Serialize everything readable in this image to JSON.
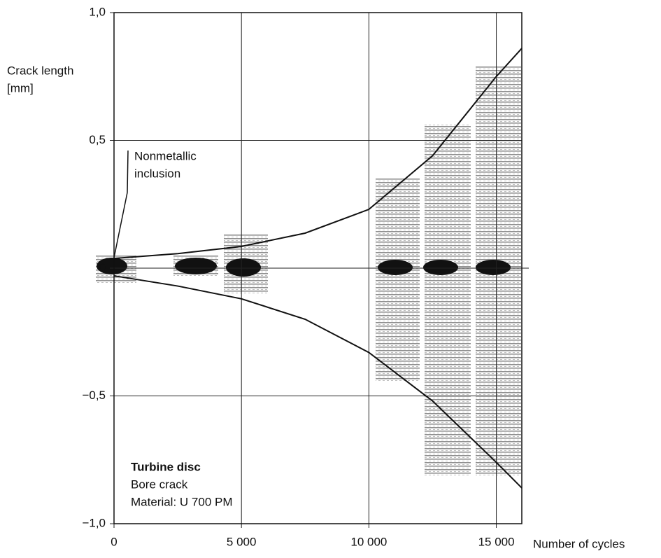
{
  "chart_data": {
    "type": "line",
    "y_label_lines": [
      "Crack length",
      "[mm]"
    ],
    "x_label": "Number of cycles",
    "annotation_lines": [
      "Nonmetallic",
      "inclusion"
    ],
    "info_title": "Turbine disc",
    "info_lines": [
      "Bore crack",
      "Material: U 700 PM"
    ],
    "x": [
      0,
      2500,
      5000,
      7500,
      10000,
      12500,
      15000,
      16000
    ],
    "series": [
      {
        "color": "#111111",
        "values": [
          0.038,
          0.057,
          0.085,
          0.137,
          0.23,
          0.44,
          0.75,
          0.86
        ]
      },
      {
        "color": "#111111",
        "values": [
          -0.03,
          -0.07,
          -0.12,
          -0.2,
          -0.33,
          -0.52,
          -0.76,
          -0.86
        ]
      }
    ],
    "xlim": [
      0,
      16000
    ],
    "xticks": [
      0,
      {
        "value": 5000,
        "label": "5 000"
      },
      {
        "value": 10000,
        "label": "10 000"
      },
      {
        "value": 15000,
        "label": "15 000"
      }
    ],
    "ylim": [
      -1,
      1
    ],
    "yticks": [
      {
        "value": -1,
        "label": "−1,0"
      },
      {
        "value": -0.5,
        "label": "−0,5"
      },
      0,
      {
        "value": 0.5,
        "label": "0,5"
      },
      {
        "value": 1,
        "label": "1,0"
      }
    ],
    "grid": true
  }
}
